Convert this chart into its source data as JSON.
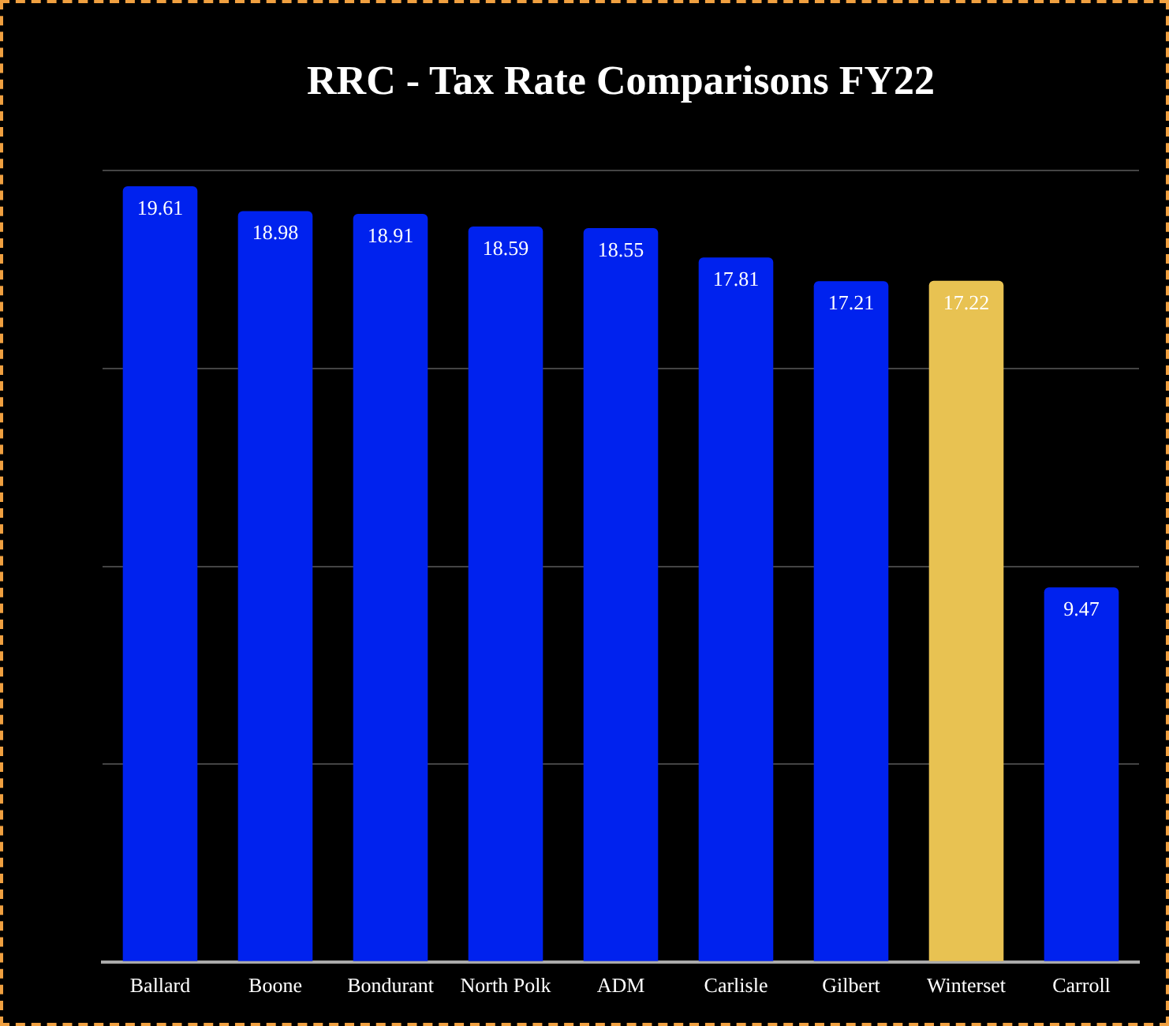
{
  "chart_data": {
    "type": "bar",
    "title": "RRC - Tax Rate Comparisons FY22",
    "categories": [
      "Ballard",
      "Boone",
      "Bondurant",
      "North Polk",
      "ADM",
      "Carlisle",
      "Gilbert",
      "Winterset",
      "Carroll"
    ],
    "values": [
      19.61,
      18.98,
      18.91,
      18.59,
      18.55,
      17.81,
      17.21,
      17.22,
      9.47
    ],
    "colors": [
      "#0022ee",
      "#0022ee",
      "#0022ee",
      "#0022ee",
      "#0022ee",
      "#0022ee",
      "#0022ee",
      "#e8c252",
      "#0022ee"
    ],
    "ylim": [
      0,
      20
    ],
    "yticks": [
      {
        "value": 0,
        "label": null
      },
      {
        "value": 5,
        "label": null
      },
      {
        "value": 10,
        "label": null
      },
      {
        "value": 15,
        "label": null
      },
      {
        "value": 20,
        "label": null
      }
    ],
    "tick_labels": "x",
    "grid": "y",
    "data_labels": true,
    "legend": false
  }
}
